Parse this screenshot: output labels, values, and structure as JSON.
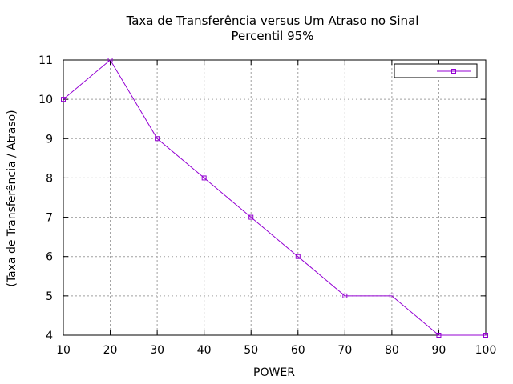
{
  "chart_data": {
    "type": "line",
    "title": "Taxa de Transferência versus Um Atraso no Sinal",
    "subtitle": "Percentil 95%",
    "xlabel": "POWER",
    "ylabel": "(Taxa de Transferência / Atraso)",
    "xlim": [
      10,
      100
    ],
    "ylim": [
      4,
      11
    ],
    "xticks": [
      10,
      20,
      30,
      40,
      50,
      60,
      70,
      80,
      90,
      100
    ],
    "yticks": [
      4,
      5,
      6,
      7,
      8,
      9,
      10,
      11
    ],
    "grid": true,
    "legend": "top-right",
    "series": [
      {
        "color": "#9400d3",
        "marker": "square",
        "x": [
          10,
          20,
          30,
          40,
          50,
          60,
          70,
          80,
          90,
          100
        ],
        "y": [
          10,
          11,
          9,
          8,
          7,
          6,
          5,
          5,
          4,
          4
        ]
      }
    ]
  }
}
